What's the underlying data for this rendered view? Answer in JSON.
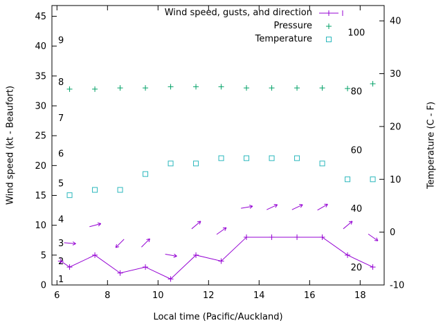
{
  "window": {
    "background": "#ffffff",
    "axis_color": "#000000"
  },
  "legend": {
    "position": "top-inside",
    "items": [
      {
        "label": "Wind speed, gusts, and direction",
        "color": "#9400d3",
        "marker": "line-plus"
      },
      {
        "label": "Pressure",
        "color": "#00a066",
        "marker": "plus"
      },
      {
        "label": "Temperature",
        "color": "#2ab7bc",
        "marker": "open-square"
      }
    ]
  },
  "chart_data": {
    "type": "line",
    "title": "",
    "xlabel": "Local time (Pacific/Auckland)",
    "ylabel_left": "Wind speed (kt - Beaufort)",
    "ylabel_right": "Temperature (C - F)",
    "grid": false,
    "xlim": [
      5.8,
      18.95
    ],
    "x_ticks": [
      6,
      8,
      10,
      12,
      14,
      16,
      18
    ],
    "ylim_left": [
      0,
      46.8
    ],
    "y_ticks_left": [
      0,
      5,
      10,
      15,
      20,
      25,
      30,
      35,
      40,
      45
    ],
    "ylim_right": [
      -10,
      42.9
    ],
    "y_ticks_right": [
      -10,
      0,
      10,
      20,
      30,
      40
    ],
    "beaufort_scale_labels": [
      {
        "label": "1",
        "kt": 1
      },
      {
        "label": "2",
        "kt": 4
      },
      {
        "label": "3",
        "kt": 7
      },
      {
        "label": "4",
        "kt": 11
      },
      {
        "label": "5",
        "kt": 17
      },
      {
        "label": "6",
        "kt": 22
      },
      {
        "label": "7",
        "kt": 28
      },
      {
        "label": "8",
        "kt": 34
      },
      {
        "label": "9",
        "kt": 41
      }
    ],
    "fahrenheit_scale_labels": [
      {
        "label": "20",
        "f": 20
      },
      {
        "label": "40",
        "f": 40
      },
      {
        "label": "60",
        "f": 60
      },
      {
        "label": "80",
        "f": 80
      },
      {
        "label": "100",
        "f": 100
      }
    ],
    "series": [
      {
        "name": "wind-speed",
        "axis": "left",
        "color": "#9400d3",
        "style": "line-plus",
        "x": [
          6.15,
          6.5,
          7.5,
          8.5,
          9.5,
          10.5,
          11.5,
          12.5,
          13.5,
          14.5,
          15.5,
          16.5,
          17.5,
          18.5
        ],
        "values": [
          4,
          3,
          5,
          2,
          3,
          1,
          5,
          4,
          8,
          8,
          8,
          8,
          5,
          3
        ]
      },
      {
        "name": "wind-gust-direction-arrows",
        "axis": "left",
        "color": "#9400d3",
        "style": "arrows",
        "x": [
          6.5,
          7.5,
          8.5,
          9.5,
          10.5,
          11.5,
          12.5,
          13.5,
          14.5,
          15.5,
          16.5,
          17.5,
          18.5
        ],
        "values": [
          7,
          10,
          7,
          7,
          5,
          10,
          9,
          13,
          13,
          13,
          13,
          10,
          8
        ],
        "angles_deg_ccw_from_east": [
          -5,
          15,
          225,
          45,
          -10,
          40,
          35,
          10,
          25,
          25,
          30,
          40,
          -35
        ]
      },
      {
        "name": "pressure",
        "axis": "left",
        "color": "#00a066",
        "style": "plus",
        "x": [
          6.5,
          7.5,
          8.5,
          9.5,
          10.5,
          11.5,
          12.5,
          13.5,
          14.5,
          15.5,
          16.5,
          17.5,
          18.5
        ],
        "values": [
          32.8,
          32.8,
          33.0,
          33.0,
          33.2,
          33.2,
          33.2,
          33.0,
          33.0,
          33.0,
          33.0,
          32.9,
          33.7
        ]
      },
      {
        "name": "temperature",
        "axis": "right",
        "color": "#2ab7bc",
        "style": "open-square",
        "x": [
          6.5,
          7.5,
          8.5,
          9.5,
          10.5,
          11.5,
          12.5,
          13.5,
          14.5,
          15.5,
          16.5,
          17.5,
          18.5
        ],
        "values": [
          7,
          8,
          8,
          11,
          13,
          13,
          14,
          14,
          14,
          14,
          13,
          10,
          10
        ]
      }
    ]
  }
}
